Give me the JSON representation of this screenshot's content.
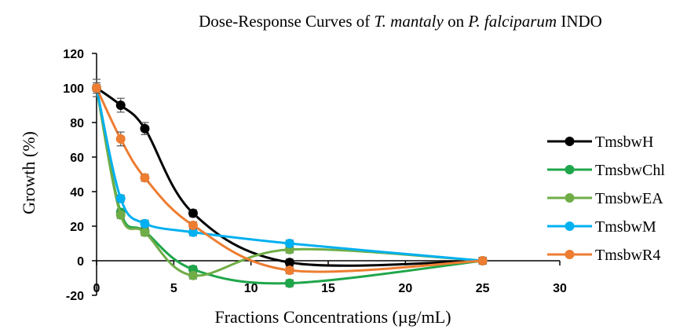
{
  "chart_data": {
    "type": "line",
    "title": {
      "prefix": "Dose-Response Curves of ",
      "species": "T. mantaly",
      "middle": " on ",
      "pathogen": "P. falciparum",
      "suffix": " INDO"
    },
    "xlabel": "Fractions Concentrations (µg/mL)",
    "ylabel": "Growth (%)",
    "xlim": [
      0,
      30
    ],
    "ylim": [
      -20,
      120
    ],
    "xticks": [
      0,
      5,
      10,
      15,
      20,
      25,
      30
    ],
    "yticks": [
      -20,
      0,
      20,
      40,
      60,
      80,
      100,
      120
    ],
    "grid": false,
    "legend_position": "right",
    "x": [
      0,
      1.5625,
      3.125,
      6.25,
      12.5,
      25
    ],
    "series": [
      {
        "name": "TmsbwH",
        "color": "#000000",
        "values": [
          100,
          90,
          76.5,
          27.5,
          -1,
          0
        ],
        "errors": [
          5,
          4,
          3.5,
          2,
          2,
          1.5
        ]
      },
      {
        "name": "TmsbwChl",
        "color": "#1fa64a",
        "values": [
          100,
          28,
          17,
          -5,
          -13,
          0
        ],
        "errors": [
          2,
          2,
          2,
          2,
          2,
          2
        ]
      },
      {
        "name": "TmsbwEA",
        "color": "#70ad47",
        "values": [
          100,
          26.5,
          16.5,
          -8.5,
          6.5,
          0
        ],
        "errors": [
          2,
          2,
          2,
          2,
          2,
          2
        ]
      },
      {
        "name": "TmsbwM",
        "color": "#00b0f0",
        "values": [
          100,
          36,
          21.5,
          16.5,
          10,
          0
        ],
        "errors": [
          2,
          2,
          2,
          2,
          2,
          2
        ]
      },
      {
        "name": "TmsbwR4",
        "color": "#ed7d31",
        "values": [
          100,
          70.5,
          48,
          20.5,
          -5.5,
          0
        ],
        "errors": [
          3,
          4,
          2,
          2,
          2,
          1.5
        ]
      }
    ]
  }
}
